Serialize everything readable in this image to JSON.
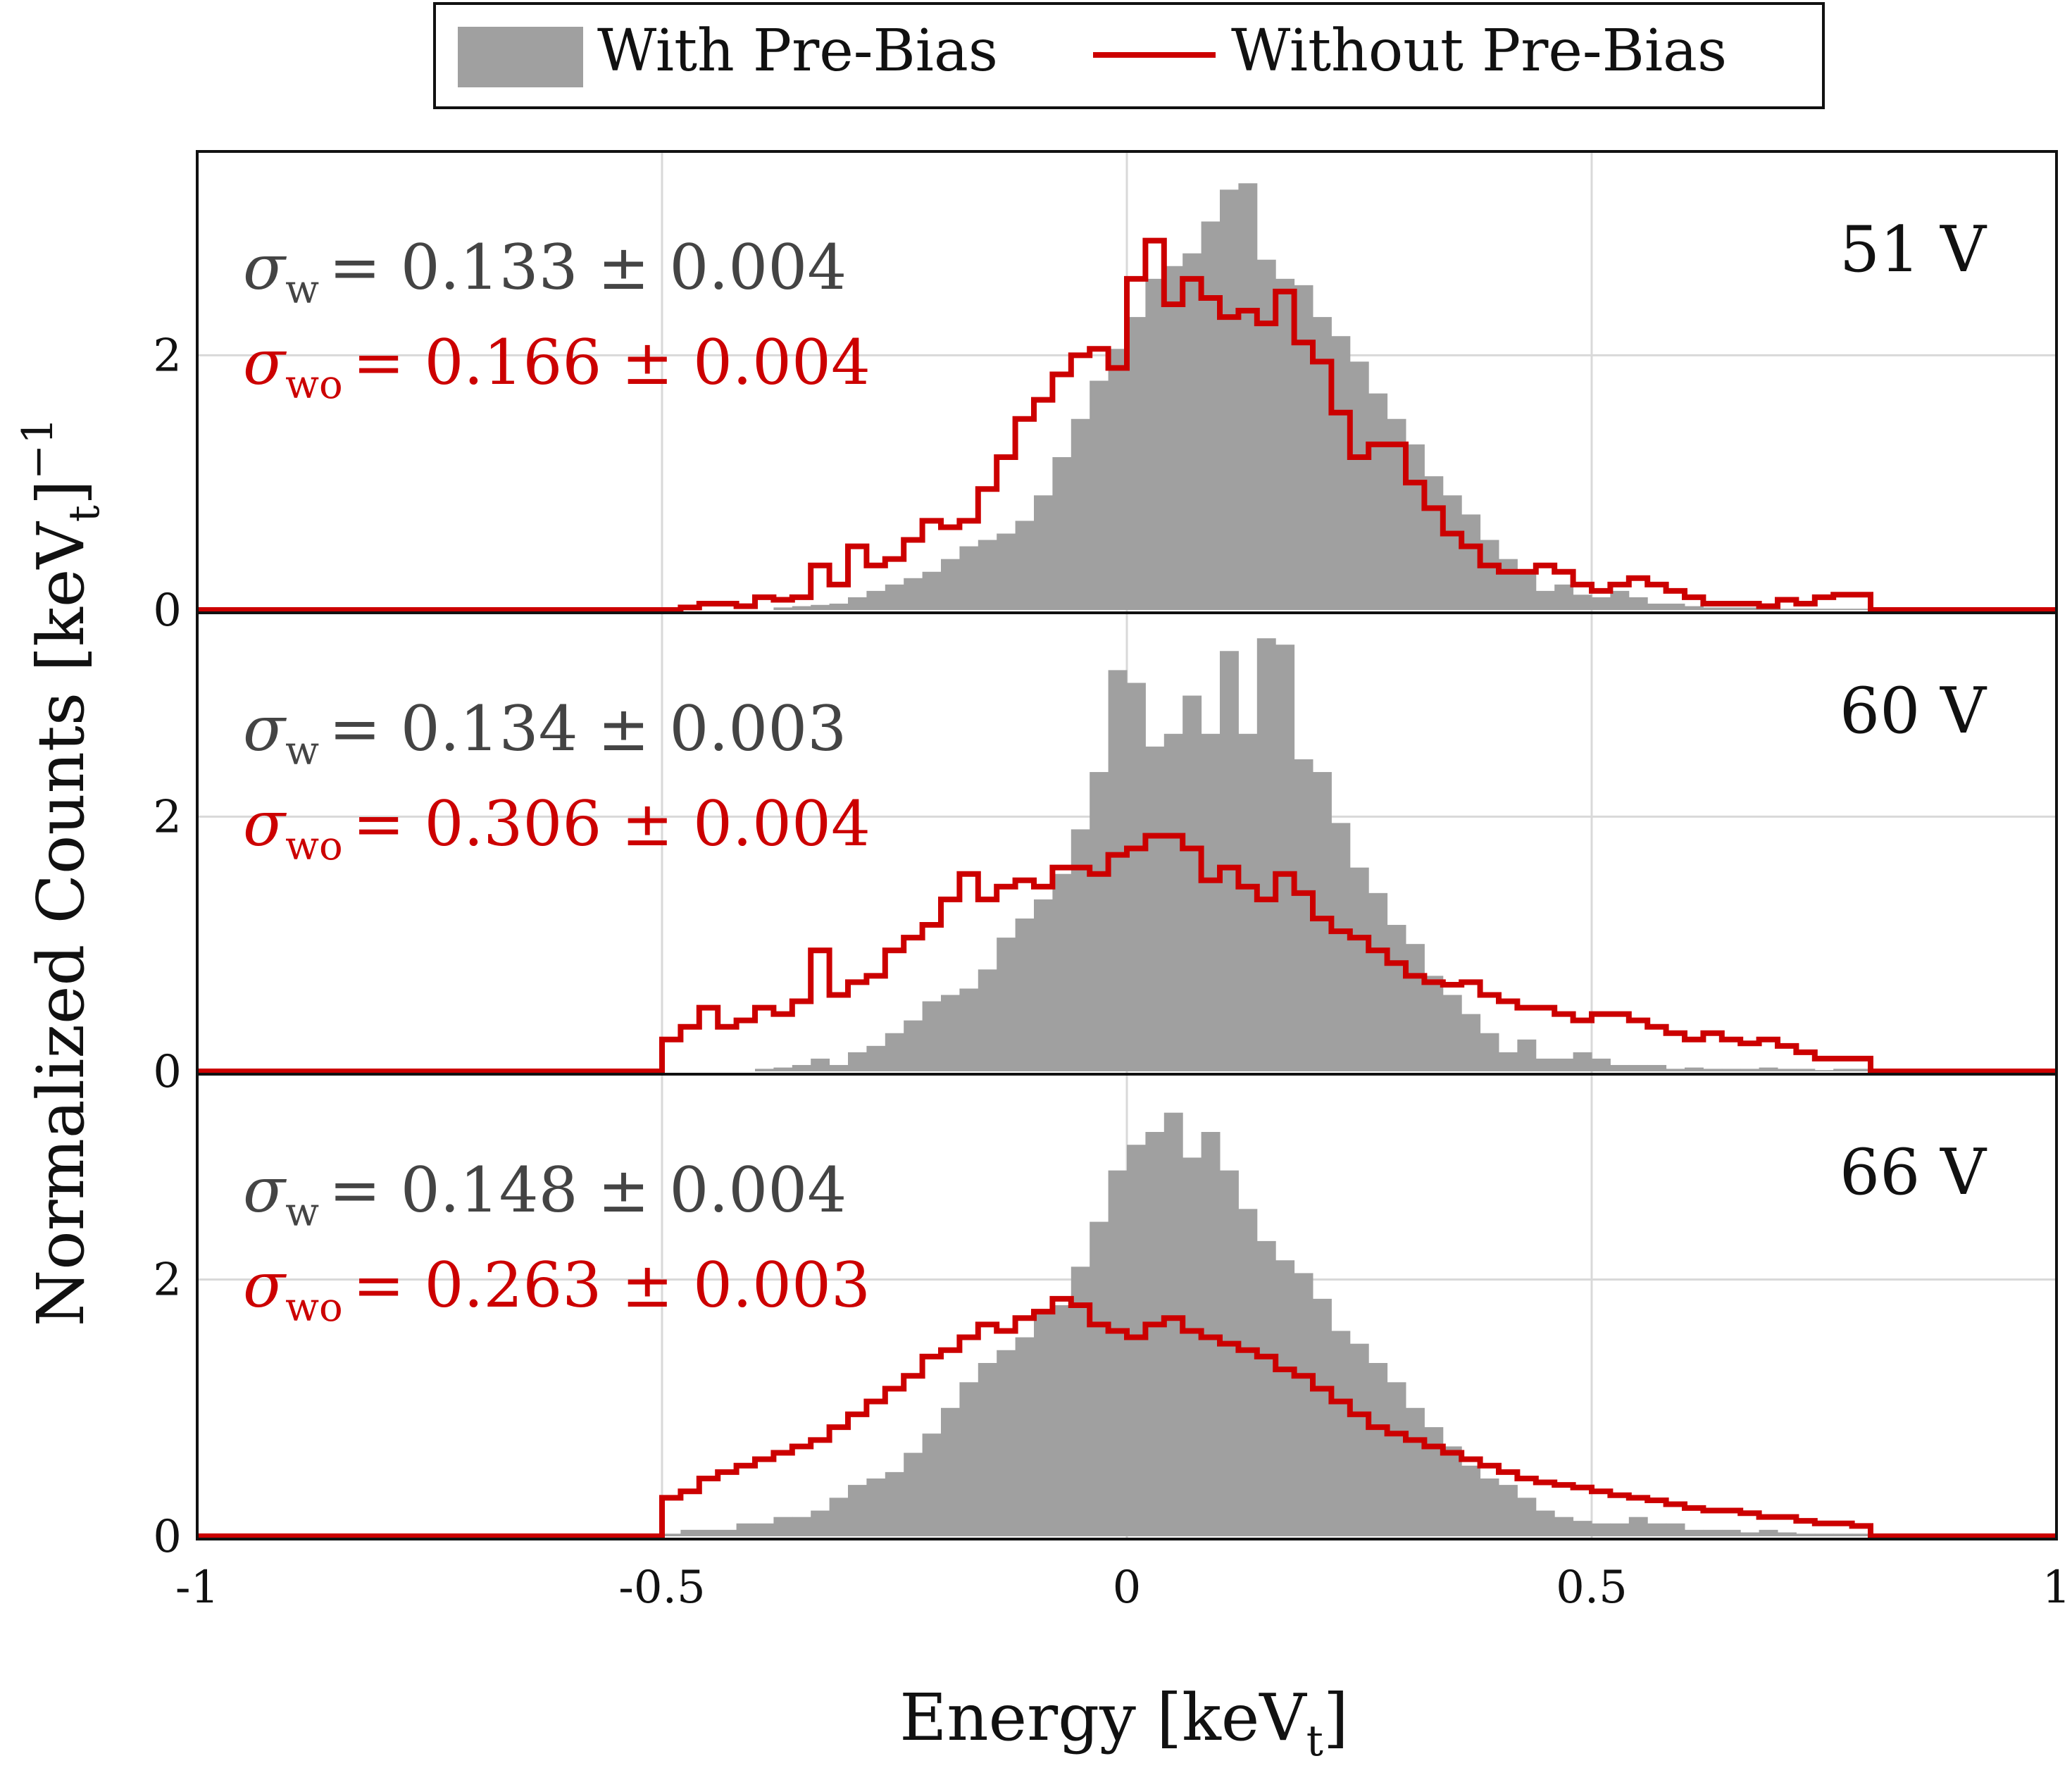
{
  "chart_data": {
    "type": "histogram-stack",
    "xlabel": "Energy [keV",
    "xlabel_sub": "t",
    "xlabel_close": "]",
    "ylabel": "Normalized Counts [keV",
    "ylabel_sub": "t",
    "ylabel_close": "]",
    "ylabel_sup": "−1",
    "xlim": [
      -1,
      1
    ],
    "xticks": [
      -1,
      -0.5,
      0,
      0.5,
      1
    ],
    "xtick_labels": [
      "-1",
      "-0.5",
      "0",
      "0.5",
      "1"
    ],
    "ylim": [
      0,
      3.6
    ],
    "yticks": [
      0,
      2
    ],
    "ytick_labels": [
      "0",
      "2"
    ],
    "bin_width": 0.02,
    "bin_start": -0.5,
    "legend": {
      "entries": [
        "With Pre-Bias",
        "Without Pre-Bias"
      ],
      "placement": "top-center"
    },
    "colors": {
      "with": "#a0a0a0",
      "without": "#cc0000",
      "grid": "#d9d9d9"
    },
    "panels": [
      {
        "label": "51 V",
        "sigma_w_symbol": "σ",
        "sigma_w_sub": "w",
        "sigma_w_value": "= 0.133 ± 0.004",
        "sigma_wo_symbol": "σ",
        "sigma_wo_sub": "wo",
        "sigma_wo_value": "= 0.166 ± 0.004",
        "with_values": [
          0,
          0,
          0,
          0,
          0,
          0,
          0.02,
          0.03,
          0.04,
          0.05,
          0.1,
          0.15,
          0.2,
          0.25,
          0.3,
          0.4,
          0.5,
          0.55,
          0.6,
          0.7,
          0.9,
          1.2,
          1.5,
          1.8,
          2.05,
          2.3,
          2.6,
          2.7,
          2.8,
          3.05,
          3.3,
          3.35,
          2.75,
          2.6,
          2.55,
          2.3,
          2.15,
          1.95,
          1.7,
          1.5,
          1.3,
          1.05,
          0.9,
          0.75,
          0.55,
          0.4,
          0.3,
          0.15,
          0.2,
          0.12,
          0.1,
          0.15,
          0.1,
          0.05,
          0.05,
          0.03,
          0.02,
          0.02,
          0.02,
          0.01,
          0.01,
          0.01,
          0.01,
          0.01,
          0.01
        ],
        "without_values": [
          0,
          0.02,
          0.05,
          0.05,
          0.03,
          0.1,
          0.08,
          0.1,
          0.35,
          0.2,
          0.5,
          0.35,
          0.4,
          0.55,
          0.7,
          0.65,
          0.7,
          0.95,
          1.2,
          1.5,
          1.65,
          1.85,
          2.0,
          2.05,
          1.9,
          2.6,
          2.9,
          2.4,
          2.6,
          2.45,
          2.3,
          2.35,
          2.25,
          2.5,
          2.1,
          1.95,
          1.55,
          1.2,
          1.3,
          1.3,
          1.0,
          0.8,
          0.6,
          0.5,
          0.35,
          0.3,
          0.3,
          0.35,
          0.3,
          0.2,
          0.15,
          0.2,
          0.25,
          0.2,
          0.15,
          0.1,
          0.05,
          0.05,
          0.05,
          0.03,
          0.08,
          0.05,
          0.1,
          0.12,
          0.12
        ]
      },
      {
        "label": "60 V",
        "sigma_w_symbol": "σ",
        "sigma_w_sub": "w",
        "sigma_w_value": "= 0.134 ± 0.003",
        "sigma_wo_symbol": "σ",
        "sigma_wo_sub": "wo",
        "sigma_wo_value": "= 0.306 ± 0.004",
        "with_values": [
          0,
          0,
          0,
          0,
          0,
          0.02,
          0.03,
          0.05,
          0.1,
          0.05,
          0.15,
          0.2,
          0.3,
          0.4,
          0.55,
          0.6,
          0.65,
          0.8,
          1.05,
          1.2,
          1.35,
          1.55,
          1.9,
          2.35,
          3.15,
          3.05,
          2.55,
          2.65,
          2.95,
          2.65,
          3.3,
          2.65,
          3.4,
          3.35,
          2.45,
          2.35,
          1.95,
          1.6,
          1.4,
          1.15,
          1.0,
          0.75,
          0.6,
          0.45,
          0.3,
          0.15,
          0.25,
          0.1,
          0.1,
          0.15,
          0.1,
          0.05,
          0.05,
          0.05,
          0.02,
          0.03,
          0.02,
          0.02,
          0.02,
          0.03,
          0.02,
          0.02,
          0.01,
          0.02,
          0.02
        ],
        "without_values": [
          0.25,
          0.35,
          0.5,
          0.35,
          0.4,
          0.5,
          0.45,
          0.55,
          0.95,
          0.6,
          0.7,
          0.75,
          0.95,
          1.05,
          1.15,
          1.35,
          1.55,
          1.35,
          1.45,
          1.5,
          1.45,
          1.6,
          1.6,
          1.55,
          1.7,
          1.75,
          1.85,
          1.85,
          1.75,
          1.5,
          1.6,
          1.45,
          1.35,
          1.55,
          1.4,
          1.2,
          1.1,
          1.05,
          0.95,
          0.85,
          0.75,
          0.7,
          0.68,
          0.7,
          0.6,
          0.55,
          0.5,
          0.5,
          0.45,
          0.4,
          0.45,
          0.45,
          0.4,
          0.35,
          0.3,
          0.25,
          0.3,
          0.25,
          0.22,
          0.25,
          0.2,
          0.15,
          0.1,
          0.1,
          0.1
        ]
      },
      {
        "label": "66 V",
        "sigma_w_symbol": "σ",
        "sigma_w_sub": "w",
        "sigma_w_value": "= 0.148 ± 0.004",
        "sigma_wo_symbol": "σ",
        "sigma_wo_sub": "wo",
        "sigma_wo_value": "= 0.263 ± 0.003",
        "with_values": [
          0.02,
          0.05,
          0.05,
          0.05,
          0.1,
          0.1,
          0.15,
          0.15,
          0.2,
          0.3,
          0.4,
          0.45,
          0.5,
          0.65,
          0.8,
          1.0,
          1.2,
          1.35,
          1.45,
          1.55,
          1.75,
          1.8,
          2.1,
          2.45,
          2.85,
          3.05,
          3.15,
          3.3,
          2.95,
          3.15,
          2.85,
          2.55,
          2.3,
          2.15,
          2.05,
          1.85,
          1.6,
          1.5,
          1.35,
          1.2,
          1.0,
          0.85,
          0.7,
          0.55,
          0.45,
          0.4,
          0.3,
          0.2,
          0.15,
          0.12,
          0.1,
          0.1,
          0.15,
          0.1,
          0.1,
          0.05,
          0.05,
          0.05,
          0.03,
          0.05,
          0.03,
          0.02,
          0.02,
          0.02,
          0.02
        ],
        "without_values": [
          0.3,
          0.35,
          0.45,
          0.5,
          0.55,
          0.6,
          0.65,
          0.7,
          0.75,
          0.85,
          0.95,
          1.05,
          1.15,
          1.25,
          1.4,
          1.45,
          1.55,
          1.65,
          1.6,
          1.7,
          1.75,
          1.85,
          1.8,
          1.65,
          1.6,
          1.55,
          1.65,
          1.7,
          1.6,
          1.55,
          1.5,
          1.45,
          1.4,
          1.3,
          1.25,
          1.15,
          1.05,
          0.95,
          0.85,
          0.8,
          0.75,
          0.7,
          0.65,
          0.6,
          0.55,
          0.5,
          0.45,
          0.42,
          0.4,
          0.38,
          0.35,
          0.32,
          0.3,
          0.28,
          0.25,
          0.22,
          0.2,
          0.2,
          0.18,
          0.15,
          0.15,
          0.12,
          0.1,
          0.1,
          0.08
        ]
      }
    ]
  }
}
